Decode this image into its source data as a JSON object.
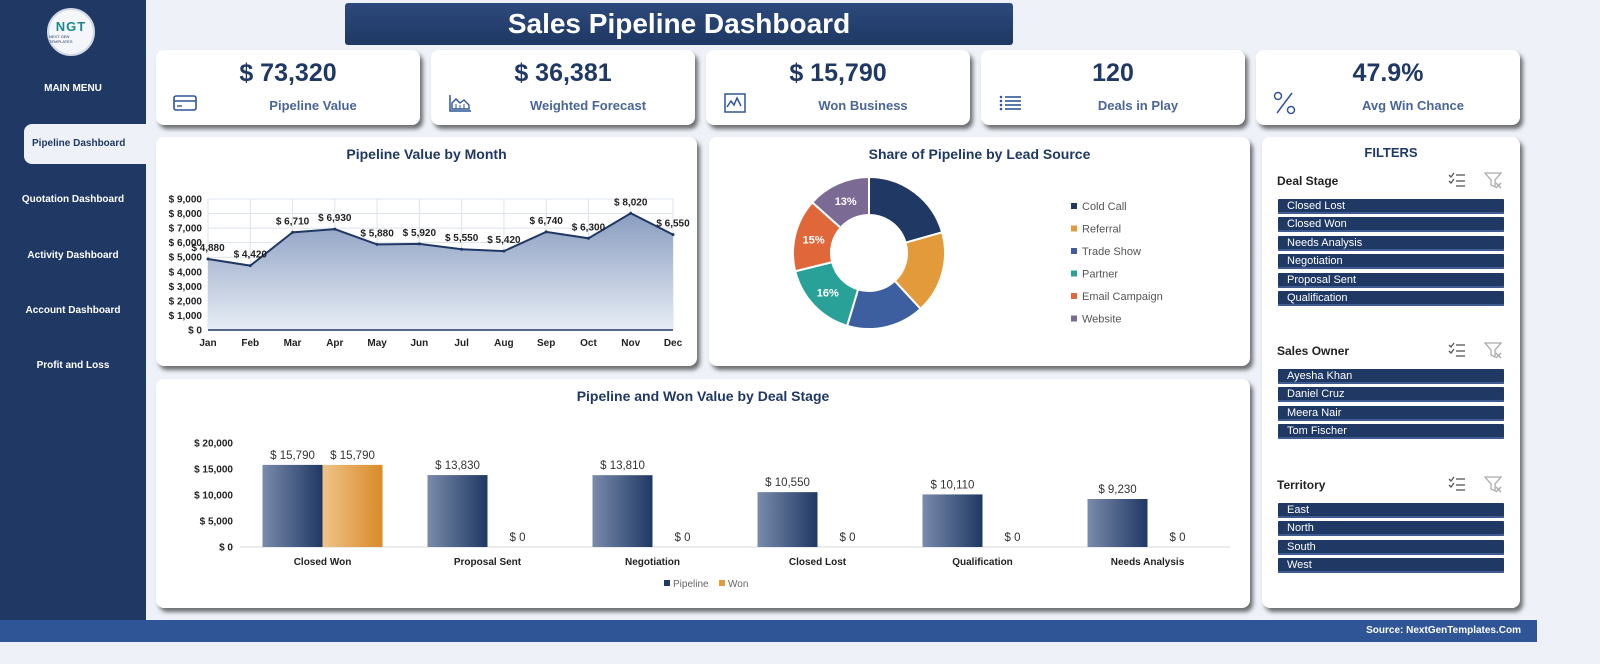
{
  "title": "Sales Pipeline Dashboard",
  "logo": {
    "text": "NGT",
    "sub": "NEXT GEN TEMPLATES"
  },
  "menu": {
    "title": "MAIN MENU",
    "items": [
      "Pipeline Dashboard",
      "Quotation Dashboard",
      "Activity Dashboard",
      "Account Dashboard",
      "Profit and Loss"
    ]
  },
  "kpis": [
    {
      "value": "$ 73,320",
      "label": "Pipeline Value",
      "icon": "credit-card-icon"
    },
    {
      "value": "$ 36,381",
      "label": "Weighted Forecast",
      "icon": "area-chart-icon"
    },
    {
      "value": "$ 15,790",
      "label": "Won Business",
      "icon": "line-chart-icon"
    },
    {
      "value": "120",
      "label": "Deals in Play",
      "icon": "list-icon"
    },
    {
      "value": "47.9%",
      "label": "Avg Win Chance",
      "icon": "percent-icon"
    }
  ],
  "colors": {
    "navy": "#1f3864",
    "won": "#e29a3a",
    "accent": "#2f5597"
  },
  "filters": {
    "title": "FILTERS",
    "groups": [
      {
        "title": "Deal Stage",
        "items": [
          "Closed Lost",
          "Closed Won",
          "Needs Analysis",
          "Negotiation",
          "Proposal Sent",
          "Qualification"
        ]
      },
      {
        "title": "Sales Owner",
        "items": [
          "Ayesha Khan",
          "Daniel Cruz",
          "Meera Nair",
          "Tom Fischer"
        ]
      },
      {
        "title": "Territory",
        "items": [
          "East",
          "North",
          "South",
          "West"
        ]
      }
    ]
  },
  "footer": "Source: NextGenTemplates.Com",
  "chart_data": [
    {
      "type": "area",
      "title": "Pipeline Value by Month",
      "categories": [
        "Jan",
        "Feb",
        "Mar",
        "Apr",
        "May",
        "Jun",
        "Jul",
        "Aug",
        "Sep",
        "Oct",
        "Nov",
        "Dec"
      ],
      "values": [
        4880,
        4420,
        6710,
        6930,
        5880,
        5920,
        5550,
        5420,
        6740,
        6300,
        8020,
        6550
      ],
      "data_labels": [
        "$ 4,880",
        "$ 4,420",
        "$ 6,710",
        "$ 6,930",
        "$ 5,880",
        "$ 5,920",
        "$ 5,550",
        "$ 5,420",
        "$ 6,740",
        "$ 6,300",
        "$ 8,020",
        "$ 6,550"
      ],
      "yticks": [
        "$ 0",
        "$ 1,000",
        "$ 2,000",
        "$ 3,000",
        "$ 4,000",
        "$ 5,000",
        "$ 6,000",
        "$ 7,000",
        "$ 8,000",
        "$ 9,000"
      ],
      "ylim": [
        0,
        9000
      ],
      "grid": true
    },
    {
      "type": "pie",
      "title": "Share of Pipeline by Lead Source",
      "labels": [
        "Cold Call",
        "Referral",
        "Trade Show",
        "Partner",
        "Email Campaign",
        "Website"
      ],
      "values": [
        20,
        17,
        16,
        16,
        15,
        13
      ],
      "data_labels": [
        "",
        "",
        "",
        "16%",
        "15%",
        "13%"
      ],
      "colors": [
        "#1f3864",
        "#e29a3a",
        "#3d5fa0",
        "#2aa198",
        "#e0673a",
        "#7b6a93"
      ],
      "legend": "right"
    },
    {
      "type": "bar",
      "title": "Pipeline and Won Value by Deal Stage",
      "categories": [
        "Closed Won",
        "Proposal Sent",
        "Negotiation",
        "Closed Lost",
        "Qualification",
        "Needs Analysis"
      ],
      "series": [
        {
          "name": "Pipeline",
          "values": [
            15790,
            13830,
            13810,
            10550,
            10110,
            9230
          ],
          "labels": [
            "$ 15,790",
            "$ 13,830",
            "$ 13,810",
            "$ 10,550",
            "$ 10,110",
            "$ 9,230"
          ]
        },
        {
          "name": "Won",
          "values": [
            15790,
            0,
            0,
            0,
            0,
            0
          ],
          "labels": [
            "$ 15,790",
            "$ 0",
            "$ 0",
            "$ 0",
            "$ 0",
            "$ 0"
          ]
        }
      ],
      "yticks": [
        "$ 0",
        "$ 5,000",
        "$ 10,000",
        "$ 15,000",
        "$ 20,000"
      ],
      "ylim": [
        0,
        20000
      ],
      "legend": "bottom"
    }
  ]
}
